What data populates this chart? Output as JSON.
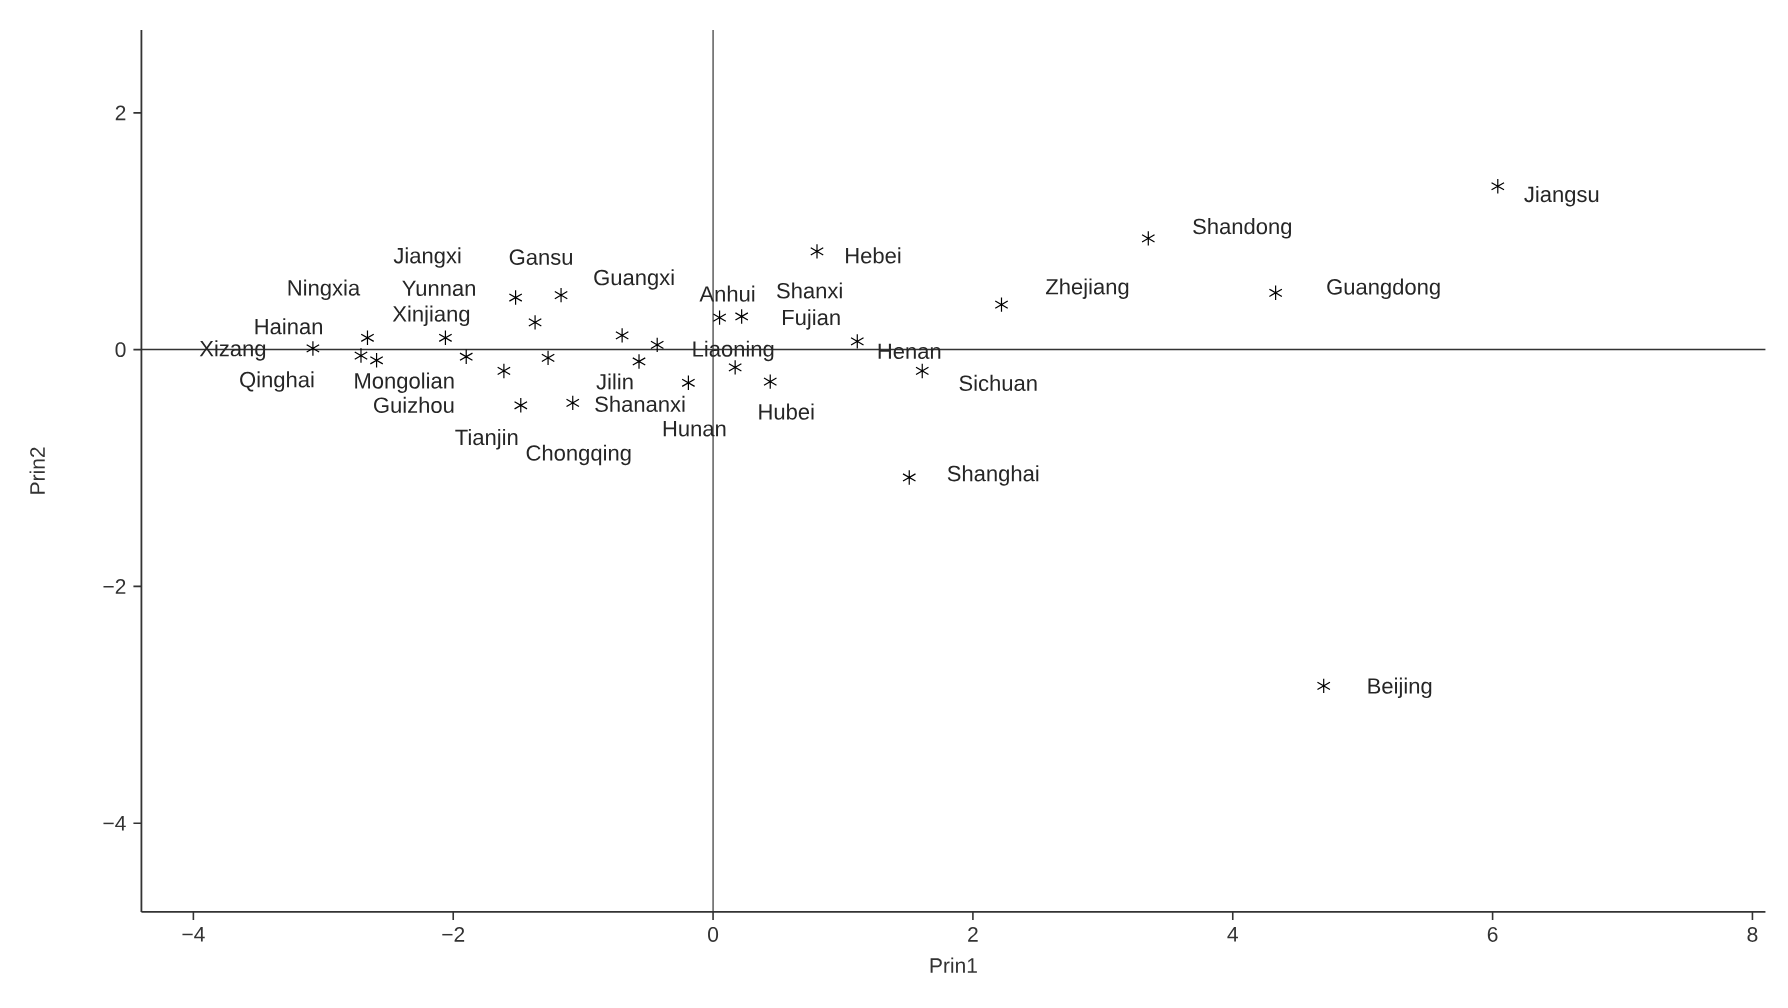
{
  "chart_data": {
    "type": "scatter",
    "xlabel": "Prin1",
    "ylabel": "Prin2",
    "marker": "cross",
    "color": "#000000",
    "xlim": [
      -4.4,
      8.1
    ],
    "ylim": [
      -4.75,
      2.7
    ],
    "xticks": [
      {
        "value": -4,
        "label": "−4"
      },
      {
        "value": -2,
        "label": "−2"
      },
      0,
      2,
      4,
      6,
      8
    ],
    "yticks": [
      {
        "value": -4,
        "label": "−4"
      },
      {
        "value": -2,
        "label": "−2"
      },
      0,
      2
    ],
    "ref_lines": [
      {
        "axis": "x",
        "value": 0
      },
      {
        "axis": "y",
        "value": 0
      }
    ],
    "x": [
      -3.08,
      -2.66,
      -2.71,
      -2.59,
      -2.06,
      -1.9,
      -1.52,
      -1.17,
      -1.37,
      -1.61,
      -1.27,
      -1.48,
      -1.08,
      -0.7,
      -0.43,
      -0.57,
      -0.19,
      0.05,
      0.22,
      0.17,
      0.44,
      0.8,
      1.11,
      1.61,
      2.22,
      1.51,
      3.35,
      4.33,
      6.04,
      4.7
    ],
    "values": [
      0.01,
      0.1,
      -0.05,
      -0.09,
      0.1,
      -0.06,
      0.44,
      0.46,
      0.23,
      -0.18,
      -0.07,
      -0.47,
      -0.45,
      0.12,
      0.04,
      -0.1,
      -0.28,
      0.27,
      0.28,
      -0.15,
      -0.27,
      0.83,
      0.07,
      -0.18,
      0.38,
      -1.08,
      0.94,
      0.48,
      1.38,
      -2.84
    ],
    "annotations": [
      {
        "text": "Xizang",
        "x": -3.08,
        "y": 0.01
      },
      {
        "text": "Ningxia",
        "x": -2.66,
        "y": 0.1
      },
      {
        "text": "Qinghai",
        "x": -2.71,
        "y": -0.05
      },
      {
        "text": "Hainan",
        "x": -2.59,
        "y": -0.09
      },
      {
        "text": "Xinjiang",
        "x": -2.06,
        "y": 0.1
      },
      {
        "text": "Mongolian",
        "x": -1.9,
        "y": -0.06
      },
      {
        "text": "Jiangxi",
        "x": -1.52,
        "y": 0.44
      },
      {
        "text": "Gansu",
        "x": -1.17,
        "y": 0.46
      },
      {
        "text": "Yunnan",
        "x": -1.37,
        "y": 0.23
      },
      {
        "text": "Guizhou",
        "x": -1.61,
        "y": -0.18
      },
      {
        "text": "Shananxi",
        "x": -1.27,
        "y": -0.07
      },
      {
        "text": "Tianjin",
        "x": -1.48,
        "y": -0.47
      },
      {
        "text": "Chongqing",
        "x": -1.08,
        "y": -0.45
      },
      {
        "text": "Guangxi",
        "x": -0.7,
        "y": 0.12
      },
      {
        "text": "Liaoning",
        "x": -0.43,
        "y": 0.04
      },
      {
        "text": "Jilin",
        "x": -0.57,
        "y": -0.1
      },
      {
        "text": "Hunan",
        "x": -0.19,
        "y": -0.28
      },
      {
        "text": "Anhui",
        "x": 0.05,
        "y": 0.27
      },
      {
        "text": "Shanxi",
        "x": 0.22,
        "y": 0.28
      },
      {
        "text": "Fujian",
        "x": 0.17,
        "y": -0.15
      },
      {
        "text": "Hubei",
        "x": 0.44,
        "y": -0.27
      },
      {
        "text": "Hebei",
        "x": 0.8,
        "y": 0.83
      },
      {
        "text": "Henan",
        "x": 1.11,
        "y": 0.07
      },
      {
        "text": "Sichuan",
        "x": 1.61,
        "y": -0.18
      },
      {
        "text": "Zhejiang",
        "x": 2.22,
        "y": 0.38
      },
      {
        "text": "Shanghai",
        "x": 1.51,
        "y": -1.08
      },
      {
        "text": "Shandong",
        "x": 3.35,
        "y": 0.94
      },
      {
        "text": "Guangdong",
        "x": 4.33,
        "y": 0.48
      },
      {
        "text": "Jiangsu",
        "x": 6.04,
        "y": 1.38
      },
      {
        "text": "Beijing",
        "x": 4.7,
        "y": -2.84
      }
    ]
  }
}
